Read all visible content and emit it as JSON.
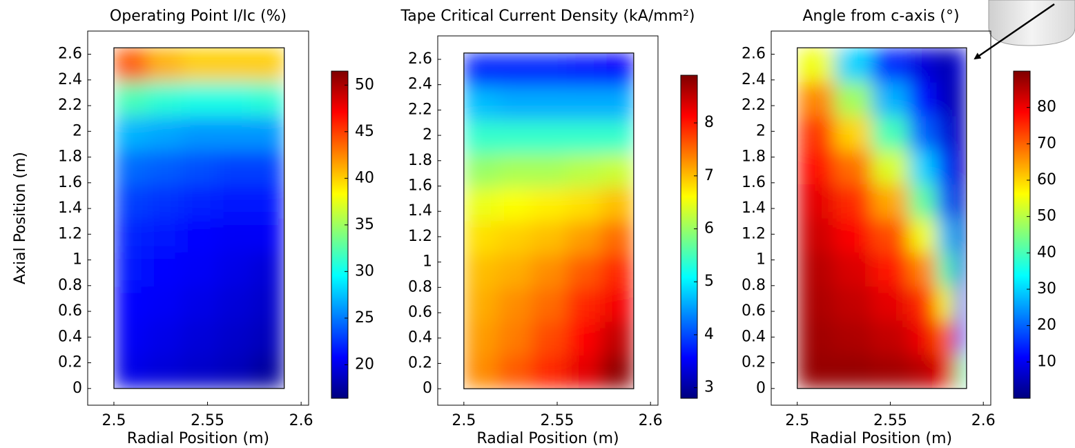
{
  "chart_data": [
    {
      "type": "heatmap",
      "title": "Operating Point I/Ic (%)",
      "xlabel": "Radial Position (m)",
      "ylabel": "Axial Position (m)",
      "xlim": [
        2.486,
        2.604
      ],
      "ylim": [
        -0.13,
        2.78
      ],
      "xticks": [
        2.5,
        2.55,
        2.6
      ],
      "yticks": [
        0,
        0.2,
        0.4,
        0.6,
        0.8,
        1,
        1.2,
        1.4,
        1.6,
        1.8,
        2,
        2.2,
        2.4,
        2.6
      ],
      "x_edges": [
        2.5,
        2.518,
        2.536,
        2.555,
        2.573,
        2.591
      ],
      "y_edges": [
        0,
        0.265,
        0.53,
        0.795,
        1.06,
        1.325,
        1.59,
        1.855,
        2.12,
        2.385,
        2.65
      ],
      "z": [
        [
          20,
          19.5,
          19,
          18.5,
          17.5
        ],
        [
          20.5,
          20,
          19.5,
          19,
          18.5
        ],
        [
          21,
          20.5,
          20,
          19.5,
          19
        ],
        [
          21.5,
          21,
          20.5,
          20,
          19.5
        ],
        [
          22,
          21.5,
          21,
          20.5,
          20.5
        ],
        [
          23,
          22.5,
          22,
          21.5,
          21.5
        ],
        [
          24.5,
          24,
          23.5,
          23,
          23
        ],
        [
          27,
          26.5,
          26,
          26,
          26
        ],
        [
          32,
          31,
          30.5,
          30.5,
          31
        ],
        [
          44,
          41,
          40,
          40,
          40
        ]
      ],
      "clim": [
        16.4,
        51.5
      ],
      "cticks": [
        20,
        25,
        30,
        35,
        40,
        45,
        50
      ],
      "colormap": [
        "#00007f",
        "#0000ff",
        "#007fff",
        "#00ffff",
        "#7fff7f",
        "#ffff00",
        "#ff7f00",
        "#ff0000",
        "#7f0000"
      ]
    },
    {
      "type": "heatmap",
      "title": "Tape Critical Current Density (kA/mm²)",
      "xlabel": "Radial Position (m)",
      "xlim": [
        2.486,
        2.604
      ],
      "ylim": [
        -0.13,
        2.785
      ],
      "xticks": [
        2.5,
        2.55,
        2.6
      ],
      "yticks": [
        0,
        0.2,
        0.4,
        0.6,
        0.8,
        1,
        1.2,
        1.4,
        1.6,
        1.8,
        2,
        2.2,
        2.4,
        2.6
      ],
      "x_edges": [
        2.5,
        2.518,
        2.536,
        2.555,
        2.573,
        2.591
      ],
      "y_edges": [
        0,
        0.265,
        0.53,
        0.795,
        1.06,
        1.325,
        1.59,
        1.855,
        2.12,
        2.385,
        2.65
      ],
      "z": [
        [
          7.3,
          7.6,
          7.9,
          8.3,
          8.8
        ],
        [
          7.2,
          7.4,
          7.7,
          8.1,
          8.5
        ],
        [
          7.1,
          7.3,
          7.5,
          7.9,
          8.2
        ],
        [
          7.0,
          7.1,
          7.3,
          7.6,
          7.9
        ],
        [
          6.8,
          6.9,
          7.0,
          7.2,
          7.5
        ],
        [
          6.5,
          6.6,
          6.7,
          6.8,
          7.0
        ],
        [
          6.0,
          6.1,
          6.1,
          6.2,
          6.3
        ],
        [
          5.4,
          5.4,
          5.4,
          5.4,
          5.4
        ],
        [
          4.7,
          4.6,
          4.6,
          4.6,
          4.6
        ],
        [
          3.8,
          3.8,
          3.8,
          3.7,
          3.6
        ]
      ],
      "clim": [
        2.8,
        8.9
      ],
      "cticks": [
        3,
        4,
        5,
        6,
        7,
        8
      ],
      "colormap": [
        "#00007f",
        "#0000ff",
        "#007fff",
        "#00ffff",
        "#7fff7f",
        "#ffff00",
        "#ff7f00",
        "#ff0000",
        "#7f0000"
      ]
    },
    {
      "type": "heatmap",
      "title": "Angle from c-axis (°)",
      "xlabel": "Radial Position (m)",
      "xlim": [
        2.486,
        2.604
      ],
      "ylim": [
        -0.13,
        2.78
      ],
      "xticks": [
        2.5,
        2.55,
        2.6
      ],
      "yticks": [
        0,
        0.2,
        0.4,
        0.6,
        0.8,
        1,
        1.2,
        1.4,
        1.6,
        1.8,
        2,
        2.2,
        2.4,
        2.6
      ],
      "x_edges": [
        2.5,
        2.52,
        2.54,
        2.56,
        2.575,
        2.585,
        2.591
      ],
      "y_edges": [
        0,
        0.265,
        0.53,
        0.795,
        1.06,
        1.325,
        1.59,
        1.855,
        2.12,
        2.385,
        2.65
      ],
      "z": [
        [
          88,
          88,
          87,
          85,
          80,
          40
        ],
        [
          87,
          86,
          84,
          80,
          70,
          20
        ],
        [
          86,
          84,
          81,
          75,
          55,
          12
        ],
        [
          85,
          82,
          77,
          67,
          40,
          8
        ],
        [
          83,
          79,
          72,
          55,
          28,
          6
        ],
        [
          81,
          75,
          64,
          42,
          18,
          5
        ],
        [
          78,
          69,
          53,
          30,
          12,
          4
        ],
        [
          74,
          60,
          40,
          20,
          8,
          4
        ],
        [
          67,
          48,
          27,
          12,
          5,
          5
        ],
        [
          55,
          30,
          15,
          8,
          4,
          8
        ]
      ],
      "clim": [
        0,
        90
      ],
      "cticks": [
        10,
        20,
        30,
        40,
        50,
        60,
        70,
        80
      ],
      "colormap": [
        "#00007f",
        "#0000ff",
        "#007fff",
        "#00ffff",
        "#7fff7f",
        "#ffff00",
        "#ff7f00",
        "#ff0000",
        "#7f0000"
      ]
    }
  ]
}
